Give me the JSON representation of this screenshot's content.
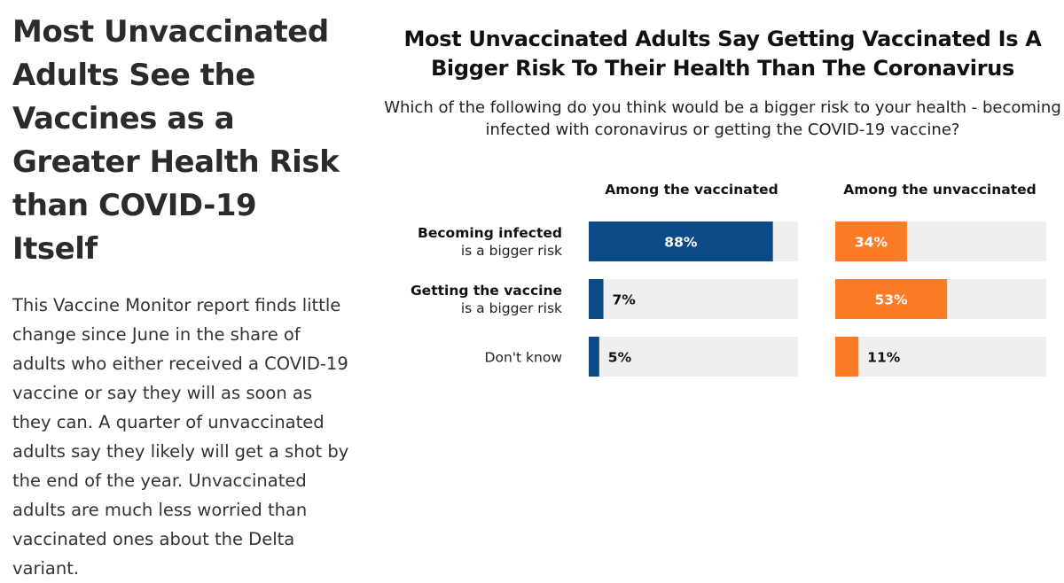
{
  "article": {
    "headline": "Most Unvaccinated Adults See the Vaccines as a Greater Health Risk than COVID-19 Itself",
    "body": "This Vaccine Monitor report finds little change since June in the share of adults who either received a COVID-19 vaccine or say they will as soon as they can. A quarter of unvaccinated adults say they likely will get a shot by the end of the year. Unvaccinated adults are much less worried than vaccinated ones about the Delta variant."
  },
  "chart_data": {
    "type": "bar",
    "orientation": "horizontal",
    "title": "Most Unvaccinated Adults Say Getting Vaccinated Is A Bigger Risk To Their Health Than The Coronavirus",
    "subtitle": "Which of the following do you think would be a bigger risk to your health - becoming infected with coronavirus or getting the COVID-19 vaccine?",
    "categories": [
      {
        "bold": "Becoming infected",
        "rest": "is a bigger risk"
      },
      {
        "bold": "Getting the vaccine",
        "rest": "is a bigger risk"
      },
      {
        "bold": "",
        "rest": "Don't know"
      }
    ],
    "series": [
      {
        "name": "Among the vaccinated",
        "values": [
          88,
          7,
          5
        ],
        "color": "#0c4a86",
        "value_labels": [
          "88%",
          "7%",
          "5%"
        ]
      },
      {
        "name": "Among the unvaccinated",
        "values": [
          34,
          53,
          11
        ],
        "color": "#fb7b26",
        "value_labels": [
          "34%",
          "53%",
          "11%"
        ]
      }
    ],
    "xlim": [
      0,
      100
    ],
    "track_color": "#efefef",
    "grid": false,
    "legend": "none"
  }
}
